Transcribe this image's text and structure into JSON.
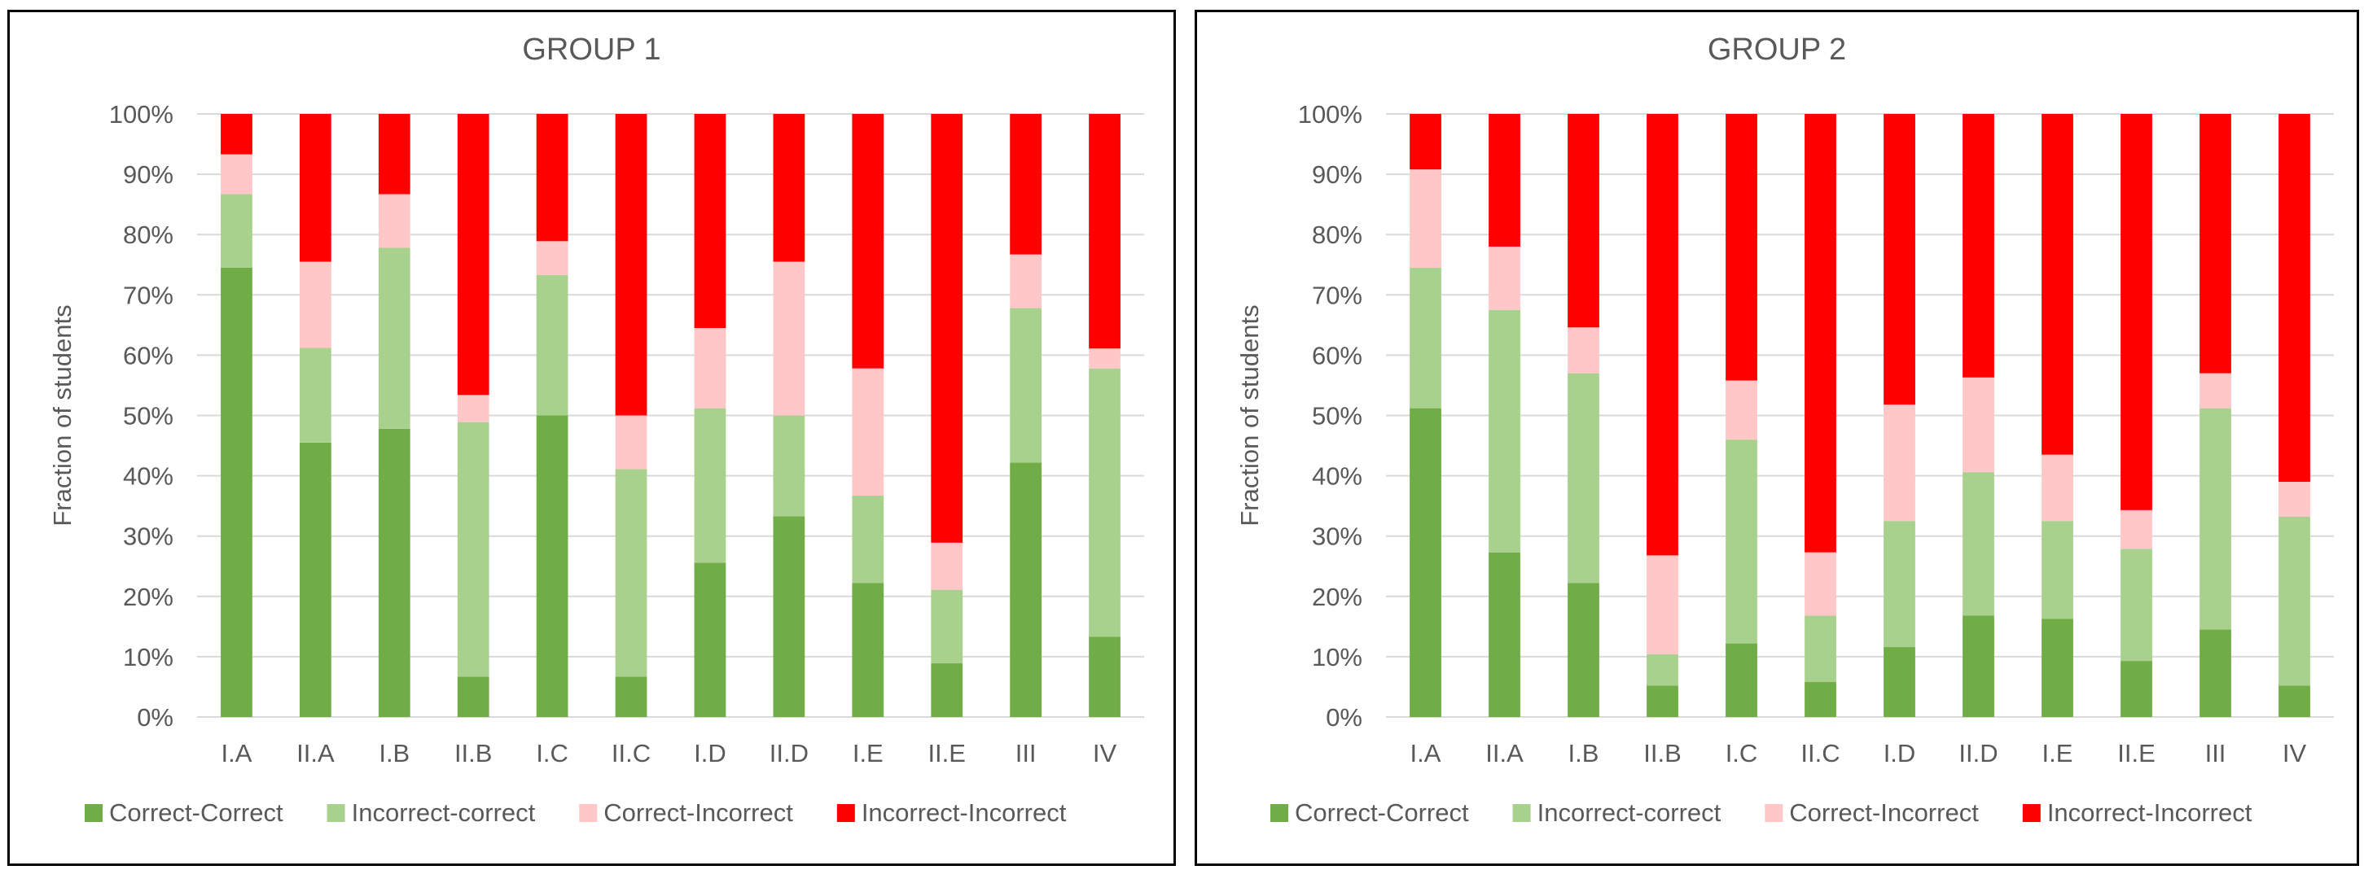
{
  "chart_data": [
    {
      "type": "bar",
      "stacked": true,
      "percent": true,
      "title": "GROUP 1",
      "xlabel": "",
      "ylabel": "Fraction of students",
      "ylim": [
        0,
        1
      ],
      "yticks": [
        "0%",
        "10%",
        "20%",
        "30%",
        "40%",
        "50%",
        "60%",
        "70%",
        "80%",
        "90%",
        "100%"
      ],
      "grid": true,
      "legend_position": "bottom",
      "categories": [
        "I.A",
        "II.A",
        "I.B",
        "II.B",
        "I.C",
        "II.C",
        "I.D",
        "II.D",
        "I.E",
        "II.E",
        "III",
        "IV"
      ],
      "series": [
        {
          "name": "Correct-Correct",
          "color": "#70ad47",
          "values": [
            0.745,
            0.455,
            0.478,
            0.067,
            0.5,
            0.067,
            0.256,
            0.333,
            0.222,
            0.089,
            0.422,
            0.133
          ]
        },
        {
          "name": "Incorrect-correct",
          "color": "#a9d18e",
          "values": [
            0.122,
            0.157,
            0.3,
            0.422,
            0.233,
            0.344,
            0.256,
            0.167,
            0.145,
            0.122,
            0.256,
            0.445
          ]
        },
        {
          "name": "Correct-Incorrect",
          "color": "#ffc7c7",
          "values": [
            0.066,
            0.143,
            0.089,
            0.045,
            0.056,
            0.089,
            0.133,
            0.255,
            0.211,
            0.078,
            0.089,
            0.033
          ]
        },
        {
          "name": "Incorrect-Incorrect",
          "color": "#ff0000",
          "values": [
            0.067,
            0.245,
            0.133,
            0.466,
            0.211,
            0.5,
            0.355,
            0.245,
            0.422,
            0.711,
            0.233,
            0.389
          ]
        }
      ]
    },
    {
      "type": "bar",
      "stacked": true,
      "percent": true,
      "title": "GROUP 2",
      "xlabel": "",
      "ylabel": "Fraction of students",
      "ylim": [
        0,
        1
      ],
      "yticks": [
        "0%",
        "10%",
        "20%",
        "30%",
        "40%",
        "50%",
        "60%",
        "70%",
        "80%",
        "90%",
        "100%"
      ],
      "grid": true,
      "legend_position": "bottom",
      "categories": [
        "I.A",
        "II.A",
        "I.B",
        "II.B",
        "I.C",
        "II.C",
        "I.D",
        "II.D",
        "I.E",
        "II.E",
        "III",
        "IV"
      ],
      "series": [
        {
          "name": "Correct-Correct",
          "color": "#70ad47",
          "values": [
            0.512,
            0.273,
            0.222,
            0.052,
            0.122,
            0.058,
            0.116,
            0.168,
            0.163,
            0.093,
            0.145,
            0.052
          ]
        },
        {
          "name": "Incorrect-correct",
          "color": "#a9d18e",
          "values": [
            0.233,
            0.402,
            0.348,
            0.052,
            0.338,
            0.11,
            0.209,
            0.238,
            0.162,
            0.186,
            0.367,
            0.28
          ]
        },
        {
          "name": "Correct-Incorrect",
          "color": "#ffc7c7",
          "values": [
            0.163,
            0.105,
            0.076,
            0.164,
            0.098,
            0.105,
            0.193,
            0.157,
            0.11,
            0.064,
            0.058,
            0.058
          ]
        },
        {
          "name": "Incorrect-Incorrect",
          "color": "#ff0000",
          "values": [
            0.092,
            0.22,
            0.354,
            0.732,
            0.442,
            0.727,
            0.482,
            0.437,
            0.565,
            0.657,
            0.43,
            0.61
          ]
        }
      ]
    }
  ]
}
